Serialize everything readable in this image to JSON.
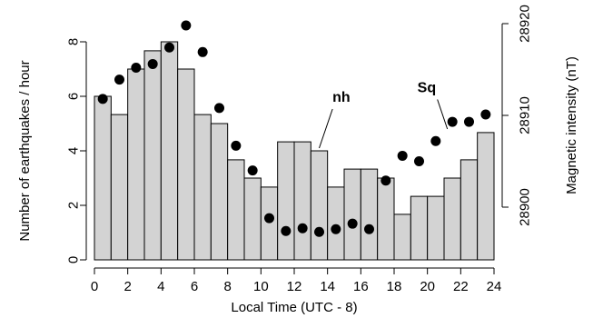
{
  "chart_data": {
    "type": "bar",
    "title": "",
    "xlabel": "Local Time (UTC - 8)",
    "ylabel": "Number of earthquakes / hour",
    "y2label": "Magnetic intensity (nT)",
    "xlim": [
      0,
      24
    ],
    "ylim": [
      0,
      8
    ],
    "y2lim": [
      28900,
      28920
    ],
    "x_ticks": [
      0,
      2,
      4,
      6,
      8,
      10,
      12,
      14,
      16,
      18,
      20,
      22,
      24
    ],
    "y_ticks": [
      0,
      2,
      4,
      6,
      8
    ],
    "y2_ticks": [
      28900,
      28910,
      28920
    ],
    "grid": false,
    "bar_color": "#d3d3d3",
    "bins": [
      0,
      1,
      2,
      3,
      4,
      5,
      6,
      7,
      8,
      9,
      10,
      11,
      12,
      13,
      14,
      15,
      16,
      17,
      18,
      19,
      20,
      21,
      22,
      23
    ],
    "values": [
      6.0,
      5.33,
      7.0,
      7.67,
      8.0,
      7.0,
      5.33,
      5.0,
      3.67,
      3.0,
      2.67,
      4.33,
      4.33,
      4.0,
      2.67,
      3.33,
      3.33,
      3.0,
      1.67,
      2.33,
      2.33,
      3.0,
      3.67,
      4.67
    ],
    "series": [
      {
        "name": "Sq",
        "axis": "right",
        "x": [
          0.5,
          1.5,
          2.5,
          3.5,
          4.5,
          5.5,
          6.5,
          7.5,
          8.5,
          9.5,
          10.5,
          11.5,
          12.5,
          13.5,
          14.5,
          15.5,
          16.5,
          17.5,
          18.5,
          19.5,
          20.5,
          21.5,
          22.5,
          23.5
        ],
        "values": [
          28911.8,
          28913.9,
          28915.2,
          28915.6,
          28917.4,
          28919.8,
          28916.9,
          28910.8,
          28906.7,
          28904.0,
          28898.8,
          28897.4,
          28897.7,
          28897.3,
          28897.6,
          28898.2,
          28897.6,
          28902.9,
          28905.6,
          28905.0,
          28907.2,
          28909.3,
          28909.3,
          28910.1
        ]
      }
    ],
    "annotations": [
      {
        "text": "nh",
        "x": 14.3,
        "y": 5.8,
        "arrow_to": [
          13.5,
          4.1
        ]
      },
      {
        "text": "Sq",
        "x": 19.4,
        "y": 6.15,
        "arrow_to": [
          21.2,
          4.8
        ]
      }
    ]
  }
}
